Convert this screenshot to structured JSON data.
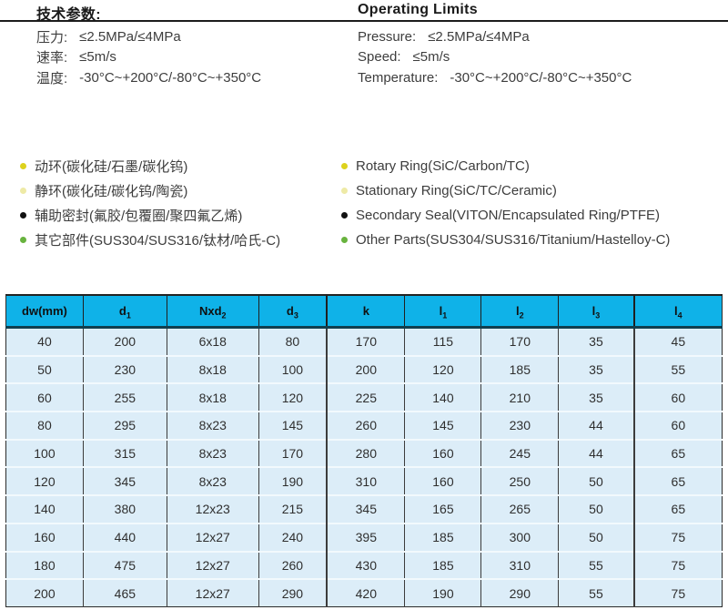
{
  "tech_params": {
    "zh_title": "技术参数:",
    "en_title": "Operating Limits",
    "zh_specs": [
      {
        "label": "压力:",
        "value": "≤2.5MPa/≤4MPa"
      },
      {
        "label": "速率:",
        "value": "≤5m/s"
      },
      {
        "label": "温度:",
        "value": "-30°C~+200°C/-80°C~+350°C"
      }
    ],
    "en_specs": [
      {
        "label": "Pressure:",
        "value": "≤2.5MPa/≤4MPa"
      },
      {
        "label": "Speed:",
        "value": "≤5m/s"
      },
      {
        "label": "Temperature:",
        "value": "-30°C~+200°C/-80°C~+350°C"
      }
    ]
  },
  "materials": {
    "zh_items": [
      {
        "bullet_color": "#ddd21d",
        "text": "动环(碳化硅/石墨/碳化钨)"
      },
      {
        "bullet_color": "#eeeaa6",
        "text": "静环(碳化硅/碳化钨/陶瓷)"
      },
      {
        "bullet_color": "#111111",
        "text": "辅助密封(氟胶/包覆圈/聚四氟乙烯)"
      },
      {
        "bullet_color": "#68b33e",
        "text": "其它部件(SUS304/SUS316/钛材/哈氏-C)"
      }
    ],
    "en_items": [
      {
        "bullet_color": "#ddd21d",
        "text": "Rotary Ring(SiC/Carbon/TC)"
      },
      {
        "bullet_color": "#eeeaa6",
        "text": "Stationary Ring(SiC/TC/Ceramic)"
      },
      {
        "bullet_color": "#111111",
        "text": "Secondary Seal(VITON/Encapsulated Ring/PTFE)"
      },
      {
        "bullet_color": "#68b33e",
        "text": "Other Parts(SUS304/SUS316/Titanium/Hastelloy-C)"
      }
    ]
  },
  "dimensions_table": {
    "header_bg": "#0fb2e8",
    "body_bg": "#dcedf8",
    "columns": [
      {
        "base": "dw(mm)",
        "sub": ""
      },
      {
        "base": "d",
        "sub": "1"
      },
      {
        "base": "Nxd",
        "sub": "2"
      },
      {
        "base": "d",
        "sub": "3"
      },
      {
        "base": "k",
        "sub": ""
      },
      {
        "base": "l",
        "sub": "1"
      },
      {
        "base": "l",
        "sub": "2"
      },
      {
        "base": "l",
        "sub": "3"
      },
      {
        "base": "l",
        "sub": "4"
      }
    ],
    "rows": [
      [
        "40",
        "200",
        "6x18",
        "80",
        "170",
        "115",
        "170",
        "35",
        "45"
      ],
      [
        "50",
        "230",
        "8x18",
        "100",
        "200",
        "120",
        "185",
        "35",
        "55"
      ],
      [
        "60",
        "255",
        "8x18",
        "120",
        "225",
        "140",
        "210",
        "35",
        "60"
      ],
      [
        "80",
        "295",
        "8x23",
        "145",
        "260",
        "145",
        "230",
        "44",
        "60"
      ],
      [
        "100",
        "315",
        "8x23",
        "170",
        "280",
        "160",
        "245",
        "44",
        "65"
      ],
      [
        "120",
        "345",
        "8x23",
        "190",
        "310",
        "160",
        "250",
        "50",
        "65"
      ],
      [
        "140",
        "380",
        "12x23",
        "215",
        "345",
        "165",
        "265",
        "50",
        "65"
      ],
      [
        "160",
        "440",
        "12x27",
        "240",
        "395",
        "185",
        "300",
        "50",
        "75"
      ],
      [
        "180",
        "475",
        "12x27",
        "260",
        "430",
        "185",
        "310",
        "55",
        "75"
      ],
      [
        "200",
        "465",
        "12x27",
        "290",
        "420",
        "190",
        "290",
        "55",
        "75"
      ]
    ]
  }
}
